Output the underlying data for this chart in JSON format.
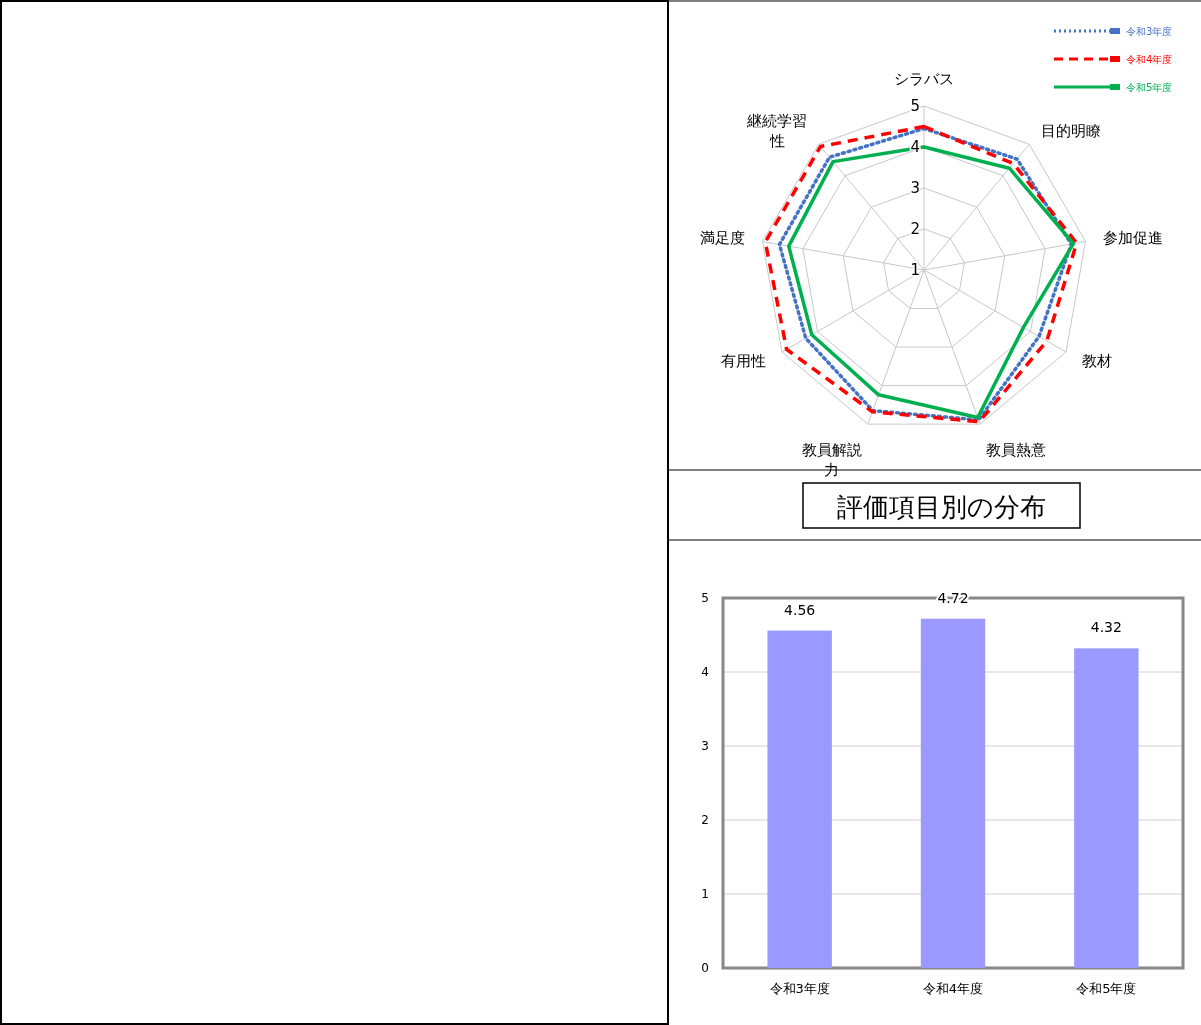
{
  "chart_data": [
    {
      "type": "radar",
      "categories": [
        "シラバス",
        "目的明瞭",
        "参加促進",
        "教材",
        "教員熱意",
        "教員解説力",
        "有用性",
        "満足度",
        "継続学習性"
      ],
      "series": [
        {
          "name": "令和3年度",
          "color": "#4472c4",
          "line_style": "dotted",
          "values": [
            4.45,
            4.53,
            4.65,
            4.24,
            4.89,
            4.65,
            4.33,
            4.58,
            4.59
          ]
        },
        {
          "name": "令和4年度",
          "color": "#ff0000",
          "line_style": "dashed",
          "values": [
            4.5,
            4.39,
            4.78,
            4.46,
            4.94,
            4.68,
            4.87,
            4.93,
            4.93
          ]
        },
        {
          "name": "令和5年度",
          "color": "#00b050",
          "line_style": "solid",
          "values": [
            4.0,
            4.24,
            4.7,
            3.8,
            4.83,
            4.24,
            4.16,
            4.35,
            4.45
          ]
        }
      ],
      "ylim": [
        1,
        5
      ],
      "yticks": [
        1,
        2,
        3,
        4,
        5
      ],
      "grid": true,
      "legend": "top right"
    },
    {
      "type": "bar",
      "title": "評価項目別の分布",
      "categories": [
        "令和3年度",
        "令和4年度",
        "令和5年度"
      ],
      "values": [
        4.56,
        4.72,
        4.32
      ],
      "color": "#9999ff",
      "ylim": [
        0,
        5
      ],
      "yticks": [
        0,
        1,
        2,
        3,
        4,
        5
      ],
      "grid": "y",
      "data_labels": true
    }
  ]
}
